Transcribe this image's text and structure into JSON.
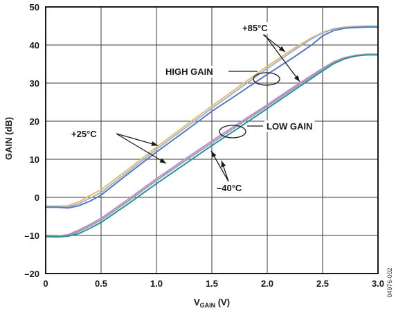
{
  "chart_data": {
    "type": "line",
    "title": "",
    "xlabel": {
      "main": "V",
      "sub": "GAIN",
      "unit": " (V)"
    },
    "ylabel": "GAIN (dB)",
    "xlim": [
      0,
      3.0
    ],
    "ylim": [
      -20,
      50
    ],
    "grid": true,
    "x_ticks": [
      0,
      0.5,
      1.0,
      1.5,
      2.0,
      2.5,
      3.0
    ],
    "x_tick_labels": [
      "0",
      "0.5",
      "1.0",
      "1.5",
      "2.0",
      "2.5",
      "3.0"
    ],
    "y_ticks": [
      -20,
      -10,
      0,
      10,
      20,
      30,
      40,
      50
    ],
    "y_tick_labels": [
      "–20",
      "–10",
      "0",
      "10",
      "20",
      "30",
      "40",
      "50"
    ],
    "series": [
      {
        "color": "#e8b87a",
        "x": [
          0,
          0.1,
          0.2,
          0.3,
          0.4,
          0.5,
          0.75,
          1.0,
          1.25,
          1.5,
          1.75,
          2.0,
          2.25,
          2.4,
          2.5,
          2.6,
          2.7,
          2.8,
          2.9,
          3.0
        ],
        "y": [
          -2.3,
          -2.3,
          -2.2,
          -1.2,
          0.5,
          2.0,
          7.5,
          13.2,
          18.6,
          24.0,
          29.2,
          34.4,
          39.3,
          41.9,
          43.3,
          44.3,
          44.7,
          44.9,
          45.0,
          45.0
        ]
      },
      {
        "color": "#9db8c4",
        "x": [
          0,
          0.1,
          0.2,
          0.3,
          0.4,
          0.5,
          0.75,
          1.0,
          1.25,
          1.5,
          1.75,
          2.0,
          2.25,
          2.4,
          2.5,
          2.6,
          2.7,
          2.8,
          2.9,
          3.0
        ],
        "y": [
          -2.5,
          -2.5,
          -2.5,
          -1.7,
          -0.2,
          1.3,
          6.9,
          12.6,
          18.0,
          23.4,
          28.6,
          33.8,
          38.8,
          41.6,
          43.2,
          44.2,
          44.6,
          44.8,
          44.9,
          44.9
        ]
      },
      {
        "color": "#5b79b8",
        "x": [
          0,
          0.1,
          0.2,
          0.3,
          0.4,
          0.5,
          0.75,
          1.0,
          1.25,
          1.5,
          1.75,
          2.0,
          2.25,
          2.4,
          2.5,
          2.6,
          2.7,
          2.8,
          2.9,
          3.0
        ],
        "y": [
          -2.6,
          -2.6,
          -2.8,
          -2.2,
          -1.0,
          0.6,
          6.3,
          11.9,
          17.2,
          22.6,
          27.4,
          32.3,
          37.0,
          40.0,
          42.4,
          43.8,
          44.4,
          44.6,
          44.7,
          44.7
        ]
      },
      {
        "color": "#c48ab8",
        "x": [
          0,
          0.1,
          0.2,
          0.3,
          0.4,
          0.5,
          0.75,
          1.0,
          1.25,
          1.5,
          1.75,
          2.0,
          2.25,
          2.5,
          2.6,
          2.7,
          2.8,
          2.9,
          3.0
        ],
        "y": [
          -10.2,
          -10.2,
          -9.8,
          -8.6,
          -7.1,
          -5.5,
          -0.4,
          4.9,
          9.9,
          14.8,
          19.6,
          24.3,
          29.2,
          33.9,
          35.6,
          36.7,
          37.3,
          37.6,
          37.6
        ]
      },
      {
        "color": "#8fa3c0",
        "x": [
          0,
          0.1,
          0.2,
          0.3,
          0.4,
          0.5,
          0.75,
          1.0,
          1.25,
          1.5,
          1.75,
          2.0,
          2.25,
          2.5,
          2.6,
          2.7,
          2.8,
          2.9,
          3.0
        ],
        "y": [
          -10.3,
          -10.3,
          -10.0,
          -9.0,
          -7.5,
          -6.0,
          -0.9,
          4.4,
          9.4,
          14.3,
          19.1,
          23.9,
          28.8,
          33.6,
          35.4,
          36.6,
          37.2,
          37.5,
          37.5
        ]
      },
      {
        "color": "#2f8f8f",
        "x": [
          0,
          0.1,
          0.2,
          0.3,
          0.4,
          0.5,
          0.75,
          1.0,
          1.25,
          1.5,
          1.75,
          2.0,
          2.25,
          2.5,
          2.6,
          2.7,
          2.8,
          2.9,
          3.0
        ],
        "y": [
          -10.3,
          -10.4,
          -10.2,
          -9.5,
          -8.1,
          -6.6,
          -1.6,
          3.6,
          8.6,
          13.6,
          18.4,
          23.3,
          28.3,
          33.2,
          35.1,
          36.4,
          37.1,
          37.4,
          37.4
        ]
      }
    ],
    "annotations": {
      "p85": {
        "text": "+85°C",
        "x": 1.88,
        "y": 44
      },
      "high_gain": {
        "text": "HIGH GAIN",
        "x": 1.08,
        "y": 33
      },
      "p25": {
        "text": "+25°C",
        "x": 0.24,
        "y": 16.6
      },
      "low_gain": {
        "text": "LOW GAIN",
        "x": 2.06,
        "y": 19.4
      },
      "m40": {
        "text": "–40°C",
        "x": 1.48,
        "y": -1.6
      }
    },
    "figure_id": "04976-002"
  }
}
